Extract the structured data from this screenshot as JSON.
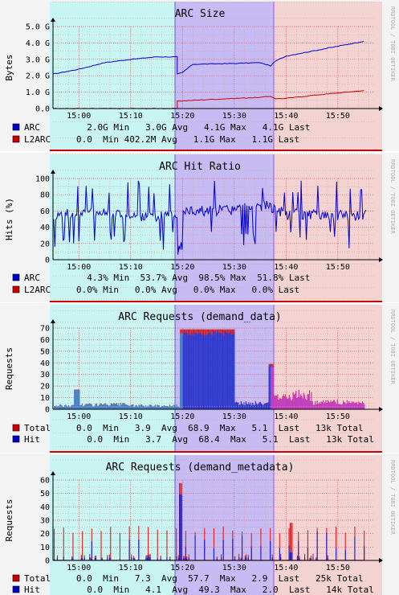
{
  "watermark": "RRDTOOL / TOBI OETIKER",
  "charts": [
    {
      "title": "ARC Size",
      "ylabel": "Bytes",
      "xticks": [
        "15:00",
        "15:10",
        "15:20",
        "15:30",
        "15:40",
        "15:50"
      ],
      "yticks": [
        "0.0",
        "1.0 G",
        "2.0 G",
        "3.0 G",
        "4.0 G",
        "5.0 G"
      ],
      "legend": [
        {
          "color": "#0000cc",
          "name": "ARC",
          "stats": "  2.0G Min   3.0G Avg   4.1G Max   4.1G Last"
        },
        {
          "color": "#cc0000",
          "name": "L2ARC",
          "stats": "0.0  Min 402.2M Avg   1.1G Max   1.1G Last"
        }
      ]
    },
    {
      "title": "ARC Hit Ratio",
      "ylabel": "Hits (%)",
      "xticks": [
        "15:00",
        "15:10",
        "15:20",
        "15:30",
        "15:40",
        "15:50"
      ],
      "yticks": [
        "0",
        "20",
        "40",
        "60",
        "80",
        "100"
      ],
      "legend": [
        {
          "color": "#0000cc",
          "name": "ARC",
          "stats": "  4.3% Min  53.7% Avg  98.5% Max  51.8% Last"
        },
        {
          "color": "#cc0000",
          "name": "L2ARC",
          "stats": "0.0% Min   0.0% Avg   0.0% Max   0.0% Last"
        }
      ]
    },
    {
      "title": "ARC Requests (demand_data)",
      "ylabel": "Requests",
      "xticks": [
        "15:00",
        "15:10",
        "15:20",
        "15:30",
        "15:40",
        "15:50"
      ],
      "yticks": [
        "0",
        "10",
        "20",
        "30",
        "40",
        "50",
        "60",
        "70"
      ],
      "legend": [
        {
          "color": "#cc0000",
          "name": "Total",
          "stats": "0.0  Min   3.9  Avg  68.9  Max   5.1  Last   13k Total"
        },
        {
          "color": "#0000cc",
          "name": "Hit",
          "stats": "  0.0  Min   3.7  Avg  68.4  Max   5.1  Last   13k Total"
        }
      ]
    },
    {
      "title": "ARC Requests (demand_metadata)",
      "ylabel": "Requests",
      "xticks": [
        "15:00",
        "15:10",
        "15:20",
        "15:30",
        "15:40",
        "15:50"
      ],
      "yticks": [
        "0",
        "10",
        "20",
        "30",
        "40",
        "50",
        "60"
      ],
      "legend": [
        {
          "color": "#cc0000",
          "name": "Total",
          "stats": "0.0  Min   7.3  Avg  57.7  Max   2.9  Last   25k Total"
        },
        {
          "color": "#0000cc",
          "name": "Hit",
          "stats": "  0.0  Min   4.1  Avg  49.3  Max   2.0  Last   14k Total"
        }
      ]
    }
  ],
  "chart_data": [
    {
      "type": "line",
      "title": "ARC Size",
      "ylabel": "Bytes",
      "x_range": [
        "14:55",
        "15:57"
      ],
      "ylim": [
        0,
        5
      ],
      "y_unit": "G",
      "series": [
        {
          "name": "ARC",
          "color": "#0000cc",
          "x": [
            "14:55",
            "15:00",
            "15:05",
            "15:10",
            "15:15",
            "15:19",
            "15:19",
            "15:20",
            "15:22",
            "15:30",
            "15:35",
            "15:37",
            "15:38",
            "15:40",
            "15:45",
            "15:50",
            "15:55"
          ],
          "y": [
            2.1,
            2.4,
            2.8,
            3.0,
            3.15,
            3.15,
            2.1,
            2.2,
            2.7,
            2.75,
            2.8,
            2.6,
            2.9,
            3.2,
            3.5,
            3.8,
            4.1
          ]
        },
        {
          "name": "L2ARC",
          "color": "#cc0000",
          "x": [
            "14:55",
            "15:19",
            "15:19",
            "15:25",
            "15:30",
            "15:35",
            "15:37",
            "15:38",
            "15:40",
            "15:45",
            "15:50",
            "15:55"
          ],
          "y": [
            0,
            0,
            0.45,
            0.55,
            0.62,
            0.68,
            0.75,
            0.6,
            0.62,
            0.8,
            0.95,
            1.1
          ]
        }
      ]
    },
    {
      "type": "line",
      "title": "ARC Hit Ratio",
      "ylabel": "Hits (%)",
      "x_range": [
        "14:55",
        "15:57"
      ],
      "ylim": [
        0,
        100
      ],
      "series": [
        {
          "name": "ARC",
          "color": "#0000cc",
          "x": [
            "14:55",
            "15:05",
            "15:15",
            "15:20",
            "15:30",
            "15:36",
            "15:40",
            "15:50",
            "15:55"
          ],
          "y": [
            55,
            58,
            52,
            60,
            62,
            68,
            56,
            55,
            52
          ]
        },
        {
          "name": "L2ARC",
          "color": "#cc0000",
          "x": [
            "14:55",
            "15:55"
          ],
          "y": [
            0,
            0
          ]
        }
      ]
    },
    {
      "type": "area",
      "title": "ARC Requests (demand_data)",
      "ylabel": "Requests",
      "x_range": [
        "14:55",
        "15:57"
      ],
      "ylim": [
        0,
        70
      ],
      "series": [
        {
          "name": "Total",
          "color": "#cc0000",
          "x": [
            "14:55",
            "15:00",
            "15:10",
            "15:19",
            "15:20",
            "15:30",
            "15:37",
            "15:38",
            "15:45",
            "15:55"
          ],
          "y": [
            3,
            4,
            3,
            2,
            68.9,
            5,
            40,
            12,
            6,
            5
          ]
        },
        {
          "name": "Hit",
          "color": "#0000cc",
          "x": [
            "14:55",
            "15:00",
            "15:10",
            "15:19",
            "15:20",
            "15:30",
            "15:37",
            "15:38",
            "15:45",
            "15:55"
          ],
          "y": [
            3,
            4,
            3,
            2,
            68.4,
            5,
            39,
            11,
            6,
            5
          ]
        }
      ]
    },
    {
      "type": "line",
      "title": "ARC Requests (demand_metadata)",
      "ylabel": "Requests",
      "x_range": [
        "14:55",
        "15:57"
      ],
      "ylim": [
        0,
        60
      ],
      "series": [
        {
          "name": "Total",
          "color": "#cc0000",
          "x": [
            "14:55",
            "15:10",
            "15:19",
            "15:30",
            "15:40",
            "15:55"
          ],
          "y": [
            7,
            7,
            57.7,
            8,
            7,
            3
          ]
        },
        {
          "name": "Hit",
          "color": "#0000cc",
          "x": [
            "14:55",
            "15:10",
            "15:19",
            "15:30",
            "15:40",
            "15:55"
          ],
          "y": [
            4,
            4,
            49.3,
            4,
            4,
            2
          ]
        }
      ]
    }
  ]
}
